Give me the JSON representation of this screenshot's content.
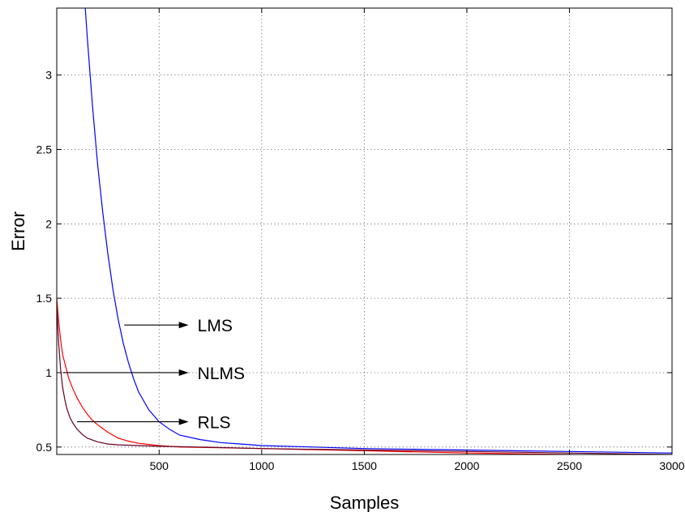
{
  "chart_data": {
    "type": "line",
    "title": "",
    "xlabel": "Samples",
    "ylabel": "Error",
    "xlim": [
      1,
      3000
    ],
    "ylim": [
      0.45,
      3.45
    ],
    "xticks": [
      500,
      1000,
      1500,
      2000,
      2500,
      3000
    ],
    "yticks": [
      0.5,
      1,
      1.5,
      2,
      2.5,
      3
    ],
    "xtick_labels": [
      "500",
      "1000",
      "1500",
      "2000",
      "2500",
      "3000"
    ],
    "ytick_labels": [
      "0.5",
      "1",
      "1.5",
      "2",
      "2.5",
      "3"
    ],
    "grid": true,
    "series": [
      {
        "color": "#0000ff",
        "x": [
          140,
          150,
          175,
          200,
          225,
          250,
          275,
          300,
          325,
          350,
          375,
          400,
          450,
          500,
          550,
          600,
          700,
          800,
          900,
          1000,
          1250,
          1500,
          2000,
          2500,
          3000
        ],
        "values": [
          3.45,
          3.25,
          2.8,
          2.4,
          2.08,
          1.8,
          1.56,
          1.36,
          1.2,
          1.07,
          0.96,
          0.87,
          0.75,
          0.67,
          0.62,
          0.58,
          0.55,
          0.53,
          0.52,
          0.51,
          0.5,
          0.49,
          0.48,
          0.47,
          0.46
        ]
      },
      {
        "color": "#ff0000",
        "x": [
          1,
          10,
          20,
          30,
          45,
          60,
          80,
          100,
          125,
          150,
          175,
          200,
          250,
          300,
          350,
          400,
          500,
          600,
          800,
          1000,
          1500,
          2000,
          2500,
          3000
        ],
        "values": [
          1.5,
          1.35,
          1.22,
          1.12,
          1.04,
          0.96,
          0.89,
          0.83,
          0.77,
          0.72,
          0.68,
          0.65,
          0.6,
          0.56,
          0.54,
          0.525,
          0.51,
          0.5,
          0.495,
          0.49,
          0.475,
          0.46,
          0.45,
          0.435
        ]
      },
      {
        "color": "#660022",
        "x": [
          1,
          10,
          20,
          30,
          40,
          50,
          65,
          80,
          100,
          125,
          150,
          200,
          250,
          300,
          400,
          500,
          700,
          1000,
          1500,
          2000,
          2500,
          3000
        ],
        "values": [
          1.45,
          1.2,
          1.02,
          0.9,
          0.82,
          0.76,
          0.7,
          0.66,
          0.62,
          0.585,
          0.56,
          0.535,
          0.52,
          0.515,
          0.51,
          0.505,
          0.5,
          0.49,
          0.48,
          0.47,
          0.46,
          0.45
        ]
      }
    ],
    "annotations": [
      {
        "text": "LMS",
        "from": [
          330,
          1.32
        ],
        "to": [
          620,
          1.32
        ]
      },
      {
        "text": "NLMS",
        "from": [
          30,
          1.0
        ],
        "to": [
          620,
          1.0
        ]
      },
      {
        "text": "RLS",
        "from": [
          100,
          0.67
        ],
        "to": [
          620,
          0.67
        ]
      }
    ]
  }
}
